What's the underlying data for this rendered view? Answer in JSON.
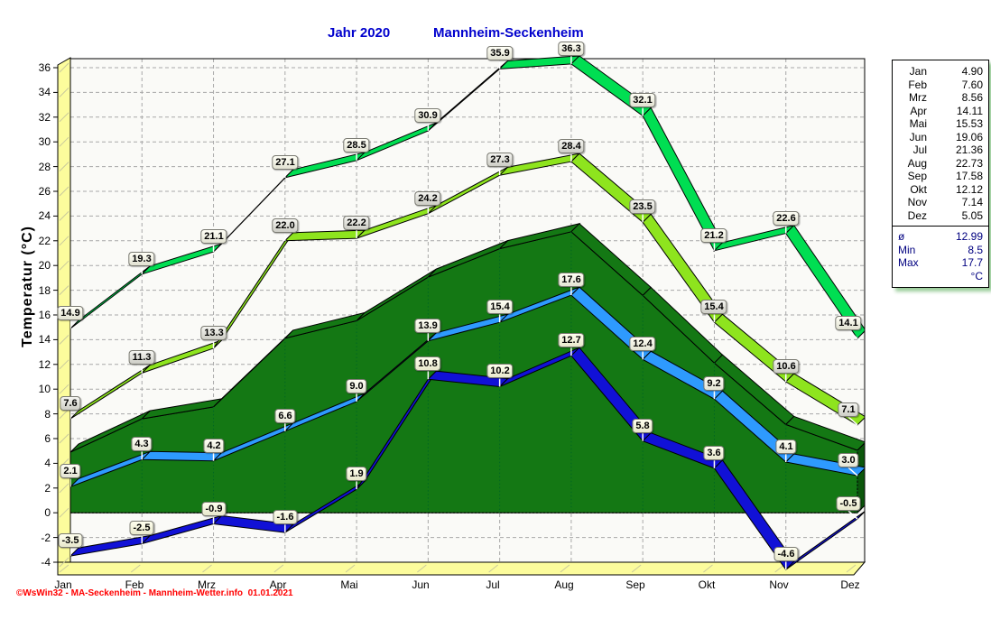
{
  "title": {
    "left": "Jahr  2020",
    "right": "Mannheim-Seckenheim"
  },
  "y_axis": {
    "label": "Temperatur  (°C)",
    "min": -4,
    "max": 36,
    "step": 2
  },
  "months": [
    "Jan",
    "Feb",
    "Mrz",
    "Apr",
    "Mai",
    "Jun",
    "Jul",
    "Aug",
    "Sep",
    "Okt",
    "Nov",
    "Dez"
  ],
  "chart_data": {
    "type": "line",
    "title": "Jahr 2020 Mannheim-Seckenheim",
    "xlabel": "",
    "ylabel": "Temperatur (°C)",
    "ylim": [
      -4,
      36
    ],
    "grid": true,
    "legend_position": "right",
    "categories": [
      "Jan",
      "Feb",
      "Mrz",
      "Apr",
      "Mai",
      "Jun",
      "Jul",
      "Aug",
      "Sep",
      "Okt",
      "Nov",
      "Dez"
    ],
    "series": [
      {
        "name": "absolute-max",
        "style": "ribbon",
        "color": "#00DE52",
        "label_bg": [
          "#FFFFF6",
          "#E2E2D2"
        ],
        "values": [
          14.9,
          19.3,
          21.1,
          27.1,
          28.5,
          30.9,
          35.9,
          36.3,
          32.1,
          21.2,
          22.6,
          14.1
        ]
      },
      {
        "name": "mean-max",
        "style": "ribbon",
        "color": "#8EE41E",
        "label_bg": [
          "#F4F4F0",
          "#CDCDC5"
        ],
        "values": [
          7.6,
          11.3,
          13.3,
          22.0,
          22.2,
          24.2,
          27.3,
          28.4,
          23.5,
          15.4,
          10.6,
          7.1
        ]
      },
      {
        "name": "mean-temperature-area",
        "style": "area",
        "color": "#147814",
        "side_color": "#0B570B",
        "values": [
          4.9,
          7.6,
          8.56,
          14.11,
          15.53,
          19.06,
          21.36,
          22.73,
          17.58,
          12.12,
          7.14,
          5.05
        ]
      },
      {
        "name": "mean-min",
        "style": "ribbon",
        "color": "#2E9AFE",
        "label_bg": [
          "#FFFFF4",
          "#E4E4D4"
        ],
        "values": [
          2.1,
          4.3,
          4.2,
          6.6,
          9.0,
          13.9,
          15.4,
          17.6,
          12.4,
          9.2,
          4.1,
          3.0
        ]
      },
      {
        "name": "absolute-min",
        "style": "ribbon",
        "color": "#1111D6",
        "label_bg": [
          "#FFFFEE",
          "#E8E8CC"
        ],
        "values": [
          -3.5,
          -2.5,
          -0.9,
          -1.6,
          1.9,
          10.8,
          10.2,
          12.7,
          5.8,
          3.6,
          -4.6,
          -0.5
        ]
      }
    ]
  },
  "legend": {
    "rows": [
      {
        "label": "Jan",
        "value": "4.90"
      },
      {
        "label": "Feb",
        "value": "7.60"
      },
      {
        "label": "Mrz",
        "value": "8.56"
      },
      {
        "label": "Apr",
        "value": "14.11"
      },
      {
        "label": "Mai",
        "value": "15.53"
      },
      {
        "label": "Jun",
        "value": "19.06"
      },
      {
        "label": "Jul",
        "value": "21.36"
      },
      {
        "label": "Aug",
        "value": "22.73"
      },
      {
        "label": "Sep",
        "value": "17.58"
      },
      {
        "label": "Okt",
        "value": "12.12"
      },
      {
        "label": "Nov",
        "value": "7.14"
      },
      {
        "label": "Dez",
        "value": "5.05"
      }
    ],
    "stats": [
      {
        "label": "ø",
        "value": "12.99"
      },
      {
        "label": "Min",
        "value": "8.5"
      },
      {
        "label": "Max",
        "value": "17.7"
      },
      {
        "label": "",
        "value": "°C"
      }
    ]
  },
  "footer": {
    "copyright": "©WsWin32 - MA-Seckenheim - Mannheim-Wetter.info  01.01.2021"
  },
  "colors": {
    "title": "#0000CD",
    "stats_text": "#000080",
    "copyright": "#FF0000",
    "wall_floor": "#FCFC9C",
    "grid": "#A8A8A8",
    "plot_bg": "#FAFAF7",
    "legend_shadow": "#9ACD9A"
  }
}
